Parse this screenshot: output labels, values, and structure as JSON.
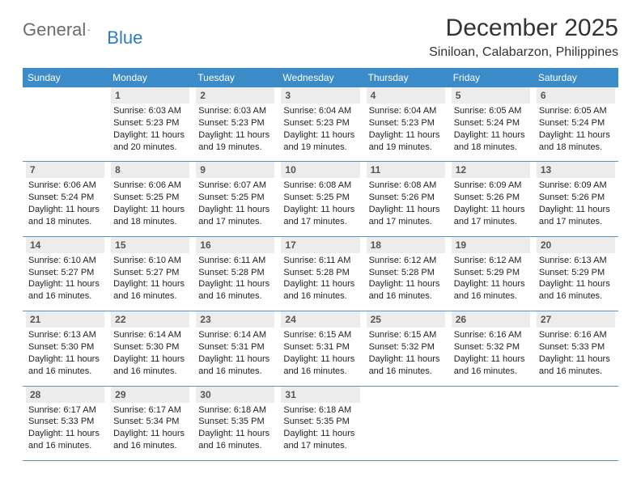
{
  "logo": {
    "text1": "General",
    "text2": "Blue"
  },
  "title": "December 2025",
  "location": "Siniloan, Calabarzon, Philippines",
  "colors": {
    "header_bg": "#3b8bc9",
    "header_text": "#ffffff",
    "daynum_bg": "#ececec",
    "daynum_text": "#555555",
    "row_border": "#5a94c4",
    "logo_gray": "#6c6c6c",
    "logo_blue": "#2f7bbf",
    "title_color": "#333333",
    "body_text": "#222222",
    "background": "#ffffff"
  },
  "typography": {
    "title_fontsize": 30,
    "location_fontsize": 16,
    "logo_fontsize": 22,
    "header_cell_fontsize": 12,
    "daynum_fontsize": 12,
    "dayinfo_fontsize": 11
  },
  "weekdays": [
    "Sunday",
    "Monday",
    "Tuesday",
    "Wednesday",
    "Thursday",
    "Friday",
    "Saturday"
  ],
  "weeks": [
    [
      null,
      {
        "day": "1",
        "sunrise": "Sunrise: 6:03 AM",
        "sunset": "Sunset: 5:23 PM",
        "daylight": "Daylight: 11 hours and 20 minutes."
      },
      {
        "day": "2",
        "sunrise": "Sunrise: 6:03 AM",
        "sunset": "Sunset: 5:23 PM",
        "daylight": "Daylight: 11 hours and 19 minutes."
      },
      {
        "day": "3",
        "sunrise": "Sunrise: 6:04 AM",
        "sunset": "Sunset: 5:23 PM",
        "daylight": "Daylight: 11 hours and 19 minutes."
      },
      {
        "day": "4",
        "sunrise": "Sunrise: 6:04 AM",
        "sunset": "Sunset: 5:23 PM",
        "daylight": "Daylight: 11 hours and 19 minutes."
      },
      {
        "day": "5",
        "sunrise": "Sunrise: 6:05 AM",
        "sunset": "Sunset: 5:24 PM",
        "daylight": "Daylight: 11 hours and 18 minutes."
      },
      {
        "day": "6",
        "sunrise": "Sunrise: 6:05 AM",
        "sunset": "Sunset: 5:24 PM",
        "daylight": "Daylight: 11 hours and 18 minutes."
      }
    ],
    [
      {
        "day": "7",
        "sunrise": "Sunrise: 6:06 AM",
        "sunset": "Sunset: 5:24 PM",
        "daylight": "Daylight: 11 hours and 18 minutes."
      },
      {
        "day": "8",
        "sunrise": "Sunrise: 6:06 AM",
        "sunset": "Sunset: 5:25 PM",
        "daylight": "Daylight: 11 hours and 18 minutes."
      },
      {
        "day": "9",
        "sunrise": "Sunrise: 6:07 AM",
        "sunset": "Sunset: 5:25 PM",
        "daylight": "Daylight: 11 hours and 17 minutes."
      },
      {
        "day": "10",
        "sunrise": "Sunrise: 6:08 AM",
        "sunset": "Sunset: 5:25 PM",
        "daylight": "Daylight: 11 hours and 17 minutes."
      },
      {
        "day": "11",
        "sunrise": "Sunrise: 6:08 AM",
        "sunset": "Sunset: 5:26 PM",
        "daylight": "Daylight: 11 hours and 17 minutes."
      },
      {
        "day": "12",
        "sunrise": "Sunrise: 6:09 AM",
        "sunset": "Sunset: 5:26 PM",
        "daylight": "Daylight: 11 hours and 17 minutes."
      },
      {
        "day": "13",
        "sunrise": "Sunrise: 6:09 AM",
        "sunset": "Sunset: 5:26 PM",
        "daylight": "Daylight: 11 hours and 17 minutes."
      }
    ],
    [
      {
        "day": "14",
        "sunrise": "Sunrise: 6:10 AM",
        "sunset": "Sunset: 5:27 PM",
        "daylight": "Daylight: 11 hours and 16 minutes."
      },
      {
        "day": "15",
        "sunrise": "Sunrise: 6:10 AM",
        "sunset": "Sunset: 5:27 PM",
        "daylight": "Daylight: 11 hours and 16 minutes."
      },
      {
        "day": "16",
        "sunrise": "Sunrise: 6:11 AM",
        "sunset": "Sunset: 5:28 PM",
        "daylight": "Daylight: 11 hours and 16 minutes."
      },
      {
        "day": "17",
        "sunrise": "Sunrise: 6:11 AM",
        "sunset": "Sunset: 5:28 PM",
        "daylight": "Daylight: 11 hours and 16 minutes."
      },
      {
        "day": "18",
        "sunrise": "Sunrise: 6:12 AM",
        "sunset": "Sunset: 5:28 PM",
        "daylight": "Daylight: 11 hours and 16 minutes."
      },
      {
        "day": "19",
        "sunrise": "Sunrise: 6:12 AM",
        "sunset": "Sunset: 5:29 PM",
        "daylight": "Daylight: 11 hours and 16 minutes."
      },
      {
        "day": "20",
        "sunrise": "Sunrise: 6:13 AM",
        "sunset": "Sunset: 5:29 PM",
        "daylight": "Daylight: 11 hours and 16 minutes."
      }
    ],
    [
      {
        "day": "21",
        "sunrise": "Sunrise: 6:13 AM",
        "sunset": "Sunset: 5:30 PM",
        "daylight": "Daylight: 11 hours and 16 minutes."
      },
      {
        "day": "22",
        "sunrise": "Sunrise: 6:14 AM",
        "sunset": "Sunset: 5:30 PM",
        "daylight": "Daylight: 11 hours and 16 minutes."
      },
      {
        "day": "23",
        "sunrise": "Sunrise: 6:14 AM",
        "sunset": "Sunset: 5:31 PM",
        "daylight": "Daylight: 11 hours and 16 minutes."
      },
      {
        "day": "24",
        "sunrise": "Sunrise: 6:15 AM",
        "sunset": "Sunset: 5:31 PM",
        "daylight": "Daylight: 11 hours and 16 minutes."
      },
      {
        "day": "25",
        "sunrise": "Sunrise: 6:15 AM",
        "sunset": "Sunset: 5:32 PM",
        "daylight": "Daylight: 11 hours and 16 minutes."
      },
      {
        "day": "26",
        "sunrise": "Sunrise: 6:16 AM",
        "sunset": "Sunset: 5:32 PM",
        "daylight": "Daylight: 11 hours and 16 minutes."
      },
      {
        "day": "27",
        "sunrise": "Sunrise: 6:16 AM",
        "sunset": "Sunset: 5:33 PM",
        "daylight": "Daylight: 11 hours and 16 minutes."
      }
    ],
    [
      {
        "day": "28",
        "sunrise": "Sunrise: 6:17 AM",
        "sunset": "Sunset: 5:33 PM",
        "daylight": "Daylight: 11 hours and 16 minutes."
      },
      {
        "day": "29",
        "sunrise": "Sunrise: 6:17 AM",
        "sunset": "Sunset: 5:34 PM",
        "daylight": "Daylight: 11 hours and 16 minutes."
      },
      {
        "day": "30",
        "sunrise": "Sunrise: 6:18 AM",
        "sunset": "Sunset: 5:35 PM",
        "daylight": "Daylight: 11 hours and 16 minutes."
      },
      {
        "day": "31",
        "sunrise": "Sunrise: 6:18 AM",
        "sunset": "Sunset: 5:35 PM",
        "daylight": "Daylight: 11 hours and 17 minutes."
      },
      null,
      null,
      null
    ]
  ]
}
